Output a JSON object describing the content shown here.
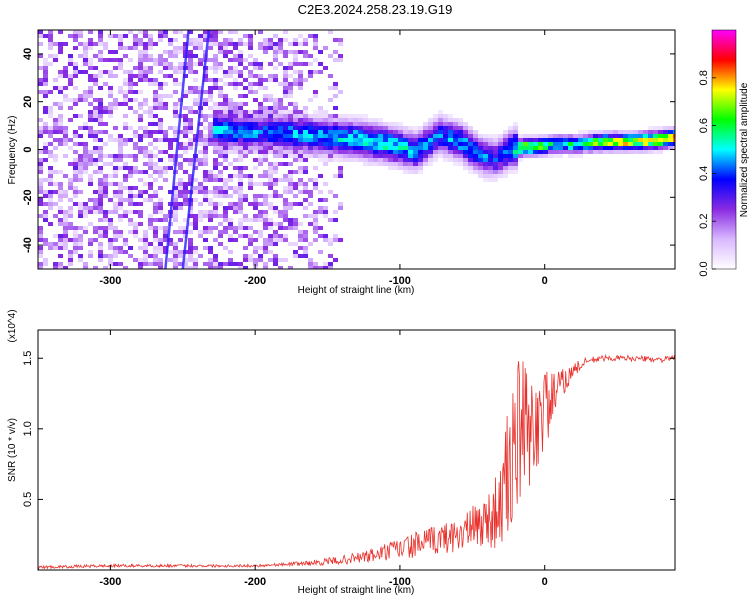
{
  "title": "C2E3.2024.258.23.19.G19",
  "chart_data": [
    {
      "type": "heatmap",
      "xlabel": "Height of straight line (km)",
      "ylabel": "Frequency (Hz)",
      "xlim": [
        -350,
        90
      ],
      "ylim": [
        -50,
        50
      ],
      "x_ticks": [
        -300,
        -200,
        -100,
        0
      ],
      "y_ticks": [
        -40,
        -20,
        0,
        20,
        40
      ],
      "colorbar": {
        "label": "Normalized spectral amplitude",
        "range": [
          0,
          1
        ],
        "ticks": [
          "0.0",
          "0.2",
          "0.4",
          "0.6",
          "0.8"
        ],
        "tick_values": [
          0.0,
          0.2,
          0.4,
          0.6,
          0.8
        ],
        "colors": [
          "#ffffff",
          "#d9b8ff",
          "#8a2be2",
          "#0000ff",
          "#00ffff",
          "#00ff00",
          "#ffff00",
          "#ff0000",
          "#ff00ff"
        ]
      },
      "ridge": {
        "x": [
          -230,
          -210,
          -190,
          -170,
          -150,
          -130,
          -110,
          -90,
          -75,
          -60,
          -45,
          -35,
          -25,
          -15,
          -5,
          5,
          20,
          40,
          60,
          80,
          90
        ],
        "y": [
          9,
          8,
          8,
          7,
          6,
          5,
          3,
          0,
          7,
          4,
          -2,
          -3,
          1,
          2,
          2,
          3,
          3,
          4,
          4,
          5,
          6
        ],
        "amplitude": [
          0.5,
          0.45,
          0.45,
          0.5,
          0.5,
          0.55,
          0.55,
          0.5,
          0.45,
          0.5,
          0.45,
          0.4,
          0.5,
          0.8,
          0.75,
          0.55,
          0.6,
          0.75,
          0.8,
          0.85,
          0.9
        ]
      },
      "noise_region_x": [
        -350,
        -140
      ],
      "noise_amplitude": 0.15
    },
    {
      "type": "line",
      "xlabel": "Height of straight line (km)",
      "ylabel": "SNR (10 * v/v)",
      "multiplier_label": "(x10^4)",
      "xlim": [
        -350,
        90
      ],
      "ylim": [
        0,
        1.7
      ],
      "x_ticks": [
        -300,
        -200,
        -100,
        0
      ],
      "y_ticks": [
        0.5,
        1.0,
        1.5
      ],
      "y_tick_labels": [
        "0.5",
        "1.0",
        "1.5"
      ],
      "series": [
        {
          "color": "#e8312c",
          "x": [
            -350,
            -300,
            -250,
            -200,
            -180,
            -160,
            -140,
            -120,
            -100,
            -80,
            -60,
            -50,
            -40,
            -30,
            -25,
            -20,
            -15,
            -10,
            -5,
            0,
            5,
            10,
            15,
            20,
            30,
            40,
            60,
            80,
            90
          ],
          "y": [
            0.02,
            0.03,
            0.03,
            0.03,
            0.04,
            0.05,
            0.07,
            0.1,
            0.15,
            0.2,
            0.25,
            0.3,
            0.35,
            0.45,
            0.7,
            0.9,
            1.0,
            0.95,
            1.05,
            1.15,
            1.2,
            1.3,
            1.35,
            1.42,
            1.48,
            1.5,
            1.5,
            1.49,
            1.5
          ],
          "noise": [
            0.01,
            0.01,
            0.01,
            0.01,
            0.01,
            0.02,
            0.03,
            0.05,
            0.08,
            0.1,
            0.12,
            0.15,
            0.2,
            0.3,
            0.5,
            0.6,
            0.5,
            0.4,
            0.35,
            0.3,
            0.2,
            0.12,
            0.08,
            0.05,
            0.03,
            0.02,
            0.02,
            0.02,
            0.02
          ]
        }
      ]
    }
  ]
}
